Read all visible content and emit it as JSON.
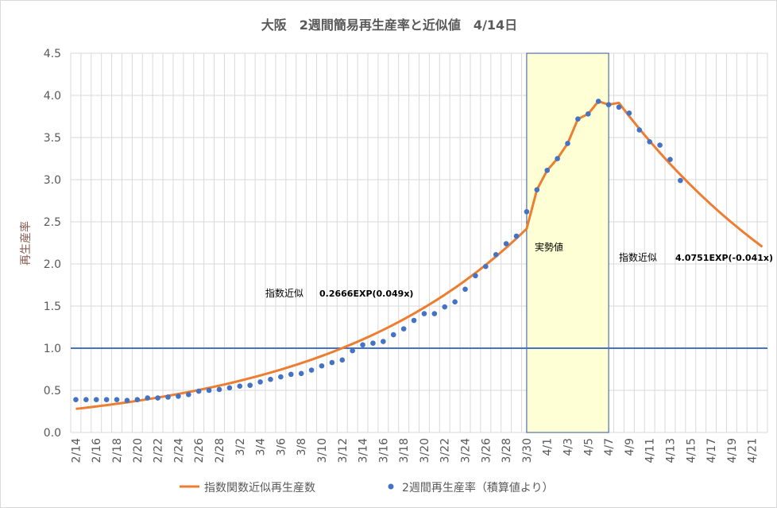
{
  "chart_data": {
    "type": "line",
    "title": "大阪　2週間簡易再生産率と近似値　4/14日",
    "ylabel": "再生産率",
    "xlabel": "",
    "ylim": [
      0,
      4.5
    ],
    "yticks": [
      "0.0",
      "0.5",
      "1.0",
      "1.5",
      "2.0",
      "2.5",
      "3.0",
      "3.5",
      "4.0",
      "4.5"
    ],
    "num_days": 68,
    "x_tick_labels": [
      "2/14",
      "2/16",
      "2/18",
      "2/20",
      "2/22",
      "2/24",
      "2/26",
      "2/28",
      "3/2",
      "3/4",
      "3/6",
      "3/8",
      "3/10",
      "3/12",
      "3/14",
      "3/16",
      "3/18",
      "3/20",
      "3/22",
      "3/24",
      "3/26",
      "3/28",
      "3/30",
      "4/1",
      "4/3",
      "4/5",
      "4/7",
      "4/9",
      "4/11",
      "4/13",
      "4/15",
      "4/17",
      "4/19",
      "4/21"
    ],
    "series": [
      {
        "name": "指数関数近似再生産数",
        "color": "#ed7d31",
        "fit1": {
          "a": 0.2666,
          "b": 0.049,
          "start_day": 0,
          "end_day": 44
        },
        "actual": {
          "start_day": 45,
          "values": [
            2.88,
            3.11,
            3.25,
            3.43,
            3.72,
            3.78,
            3.93,
            3.89
          ]
        },
        "fit2": {
          "a": 4.0751,
          "b": -0.041,
          "start_day": 53,
          "end_day": 67
        }
      },
      {
        "name": "2週間再生産率（積算値より）",
        "color": "#4472c4",
        "start_day": 0,
        "values": [
          0.39,
          0.39,
          0.39,
          0.39,
          0.39,
          0.38,
          0.39,
          0.41,
          0.41,
          0.42,
          0.43,
          0.45,
          0.49,
          0.5,
          0.51,
          0.53,
          0.55,
          0.56,
          0.6,
          0.63,
          0.66,
          0.69,
          0.7,
          0.74,
          0.79,
          0.83,
          0.86,
          0.97,
          1.04,
          1.06,
          1.08,
          1.16,
          1.23,
          1.33,
          1.41,
          1.41,
          1.49,
          1.55,
          1.7,
          1.86,
          1.97,
          2.11,
          2.24,
          2.33,
          2.62,
          2.88,
          3.11,
          3.25,
          3.43,
          3.72,
          3.78,
          3.93,
          3.89,
          3.86,
          3.79,
          3.59,
          3.45,
          3.41,
          3.24,
          2.99
        ]
      }
    ],
    "reference_line": {
      "value": 1.0,
      "color": "#4472c4"
    },
    "highlight": {
      "from_day": 44,
      "to_day": 52,
      "label": "実勢値",
      "fill": "#ffffd5",
      "stroke": "#2f5597"
    },
    "annotations": [
      {
        "label": "指数近似",
        "formula": "0.2666EXP(0.049x)"
      },
      {
        "label": "指数近似",
        "formula": "4.0751EXP(-0.041x)"
      }
    ],
    "legend": "bottom"
  }
}
